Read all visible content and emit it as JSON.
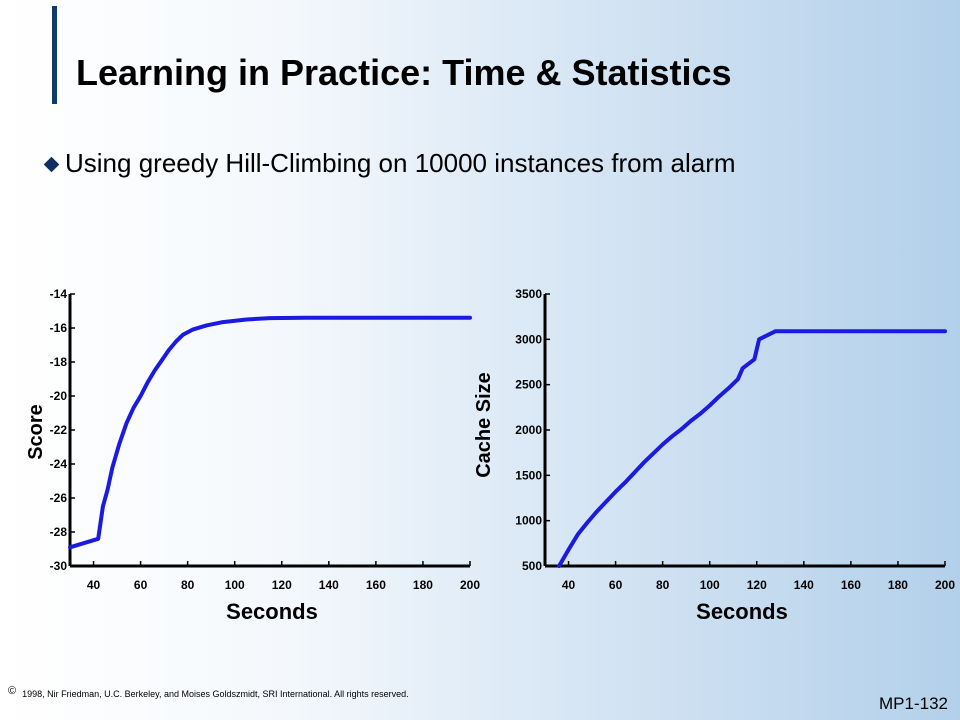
{
  "slide": {
    "title": "Learning in Practice: Time & Statistics",
    "bullet": "Using greedy Hill-Climbing on 10000 instances from alarm",
    "footer": "1998, Nir Friedman, U.C. Berkeley, and Moises Goldszmidt, SRI International. All rights reserved.",
    "copyright_symbol": "©",
    "slide_number": "MP1-132"
  },
  "colors": {
    "line": "#1a1ae0",
    "axis": "#000000",
    "title_bar": "#0f3a6e"
  },
  "chart_data": [
    {
      "type": "line",
      "xlabel": "Seconds",
      "ylabel": "Score",
      "xlim": [
        30,
        200
      ],
      "ylim": [
        -30,
        -14
      ],
      "xticks": [
        40,
        60,
        80,
        100,
        120,
        140,
        160,
        180,
        200
      ],
      "yticks": [
        -14,
        -16,
        -18,
        -20,
        -22,
        -24,
        -26,
        -28,
        -30
      ],
      "grid": false,
      "series": [
        {
          "points": [
            [
              30,
              -28.9
            ],
            [
              42,
              -28.4
            ],
            [
              44,
              -26.5
            ],
            [
              46,
              -25.5
            ],
            [
              48,
              -24.2
            ],
            [
              51,
              -22.8
            ],
            [
              54,
              -21.6
            ],
            [
              57,
              -20.7
            ],
            [
              60,
              -20.0
            ],
            [
              63,
              -19.2
            ],
            [
              66,
              -18.5
            ],
            [
              69,
              -17.9
            ],
            [
              72,
              -17.3
            ],
            [
              75,
              -16.8
            ],
            [
              78,
              -16.4
            ],
            [
              82,
              -16.1
            ],
            [
              88,
              -15.85
            ],
            [
              95,
              -15.65
            ],
            [
              105,
              -15.5
            ],
            [
              115,
              -15.42
            ],
            [
              130,
              -15.4
            ],
            [
              200,
              -15.4
            ]
          ]
        }
      ]
    },
    {
      "type": "line",
      "xlabel": "Seconds",
      "ylabel": "Cache Size",
      "xlim": [
        30,
        200
      ],
      "ylim": [
        500,
        3500
      ],
      "xticks": [
        40,
        60,
        80,
        100,
        120,
        140,
        160,
        180,
        200
      ],
      "yticks": [
        500,
        1000,
        1500,
        2000,
        2500,
        3000,
        3500
      ],
      "grid": false,
      "series": [
        {
          "points": [
            [
              36,
              500
            ],
            [
              40,
              680
            ],
            [
              44,
              850
            ],
            [
              48,
              980
            ],
            [
              52,
              1100
            ],
            [
              56,
              1210
            ],
            [
              60,
              1320
            ],
            [
              64,
              1420
            ],
            [
              68,
              1530
            ],
            [
              72,
              1640
            ],
            [
              76,
              1740
            ],
            [
              80,
              1840
            ],
            [
              84,
              1930
            ],
            [
              88,
              2010
            ],
            [
              92,
              2100
            ],
            [
              96,
              2180
            ],
            [
              100,
              2270
            ],
            [
              104,
              2370
            ],
            [
              108,
              2460
            ],
            [
              112,
              2560
            ],
            [
              114,
              2680
            ],
            [
              119,
              2780
            ],
            [
              121,
              3000
            ],
            [
              128,
              3090
            ],
            [
              200,
              3090
            ]
          ]
        }
      ]
    }
  ]
}
